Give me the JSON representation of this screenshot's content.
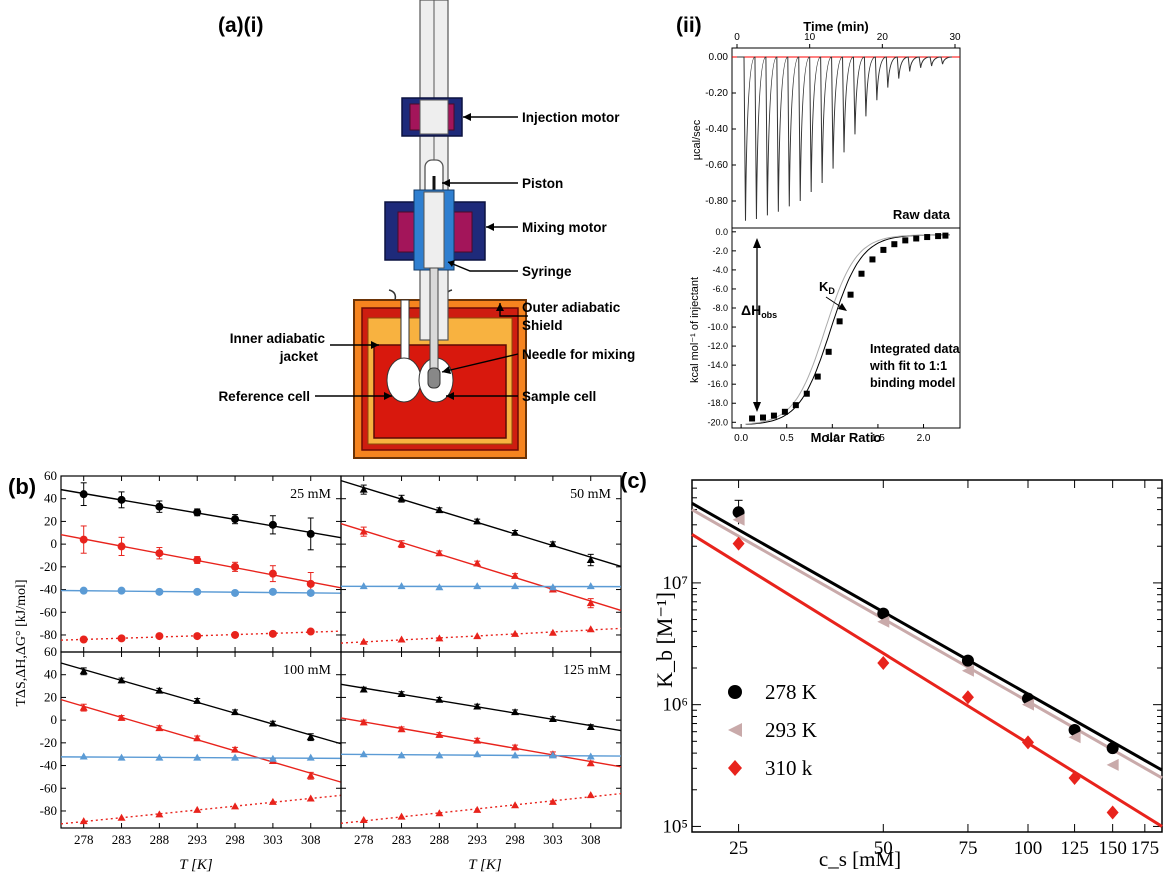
{
  "panel_labels": {
    "a": "(a)(i)",
    "aii": "(ii)",
    "b": "(b)",
    "c": "(c)"
  },
  "colors": {
    "black": "#000000",
    "red": "#e8231c",
    "blue": "#5b9bd5",
    "grey": "#c9aaaa",
    "ref": "#ff0000"
  },
  "diagram": {
    "labels": {
      "injection_motor": "Injection motor",
      "piston": "Piston",
      "mixing_motor": "Mixing motor",
      "syringe": "Syringe",
      "outer_shield_1": "Outer adiabatic",
      "outer_shield_2": "Shield",
      "inner_jacket_1": "Inner adiabatic",
      "inner_jacket_2": "jacket",
      "needle": "Needle for mixing",
      "reference_cell": "Reference cell",
      "sample_cell": "Sample cell"
    }
  },
  "itc": {
    "top_xlabel": "Time (min)",
    "top_ticks": [
      "0",
      "10",
      "20",
      "30"
    ],
    "raw_ylabel": "µcal/sec",
    "raw_yticks": [
      "0.00",
      "-0.20",
      "-0.40",
      "-0.60",
      "-0.80"
    ],
    "raw_label": "Raw data",
    "int_ylabel": "kcal mol⁻¹ of injectant",
    "int_yticks": [
      "0.0",
      "-2.0",
      "-4.0",
      "-6.0",
      "-8.0",
      "-10.0",
      "-12.0",
      "-14.0",
      "-16.0",
      "-18.0",
      "-20.0"
    ],
    "int_xticks": [
      "0.0",
      "0.5",
      "1.0",
      "1.5",
      "2.0"
    ],
    "int_xlabel": "Molar Ratio",
    "dh_label": "ΔH",
    "dh_sub": "obs",
    "kd_label": "K",
    "kd_sub": "D",
    "int_text_1": "Integrated data",
    "int_text_2": "with fit to 1:1",
    "int_text_3": "binding model"
  },
  "chart_data": [
    {
      "type": "scatter",
      "panel": "(ii) raw data",
      "x_label": "Time (min)",
      "x_range": [
        0,
        30
      ],
      "y_label": "µcal/sec",
      "y_range": [
        -0.95,
        0.05
      ],
      "injection_count": 19,
      "peak_depths": [
        -0.91,
        -0.9,
        -0.88,
        -0.86,
        -0.83,
        -0.8,
        -0.75,
        -0.7,
        -0.62,
        -0.53,
        -0.43,
        -0.33,
        -0.24,
        -0.17,
        -0.12,
        -0.08,
        -0.06,
        -0.05,
        -0.04
      ]
    },
    {
      "type": "scatter",
      "panel": "(ii) integrated data",
      "x_label": "Molar Ratio",
      "x_range": [
        -0.1,
        2.4
      ],
      "y_label": "kcal mol⁻¹ of injectant",
      "y_range": [
        -20.6,
        0.4
      ],
      "x": [
        0.12,
        0.24,
        0.36,
        0.48,
        0.6,
        0.72,
        0.84,
        0.96,
        1.08,
        1.2,
        1.32,
        1.44,
        1.56,
        1.68,
        1.8,
        1.92,
        2.04,
        2.16,
        2.24
      ],
      "y": [
        -19.6,
        -19.5,
        -19.3,
        -18.9,
        -18.2,
        -17.0,
        -15.2,
        -12.6,
        -9.4,
        -6.6,
        -4.4,
        -2.9,
        -1.9,
        -1.3,
        -0.9,
        -0.7,
        -0.55,
        -0.45,
        -0.4
      ]
    },
    {
      "type": "scatter",
      "panel": "(b)",
      "xlabel": "T [K]",
      "ylabel": "TΔS,ΔH,ΔG° [kJ/mol]",
      "x_ticks": [
        278,
        283,
        288,
        293,
        298,
        303,
        308
      ],
      "x_range": [
        275,
        312
      ],
      "y_range": [
        -95,
        60
      ],
      "y_ticks": [
        60,
        40,
        20,
        0,
        -20,
        -40,
        -60,
        -80
      ],
      "subplots": [
        {
          "label": "25 mM",
          "x": [
            278,
            283,
            288,
            293,
            298,
            303,
            308
          ],
          "black": [
            44,
            39,
            33,
            28,
            22,
            17,
            9
          ],
          "red": [
            4,
            -2,
            -8,
            -14,
            -20,
            -26,
            -35
          ],
          "blue": [
            -41,
            -41,
            -42,
            -42,
            -43,
            -42,
            -43
          ],
          "redDot": [
            -84,
            -83,
            -81,
            -81,
            -80,
            -79,
            -77
          ],
          "black_err": [
            10,
            7,
            5,
            3,
            4,
            8,
            14
          ],
          "red_err": [
            12,
            8,
            5,
            3,
            4,
            7,
            10
          ]
        },
        {
          "label": "50 mM",
          "x": [
            278,
            283,
            288,
            293,
            298,
            303,
            308
          ],
          "black": [
            48,
            40,
            30,
            20,
            10,
            0,
            -14
          ],
          "red": [
            11,
            0,
            -8,
            -17,
            -28,
            -40,
            -52
          ],
          "blue": [
            -37,
            -37,
            -38,
            -37,
            -37,
            -38,
            -37
          ],
          "redDot": [
            -86,
            -84,
            -83,
            -81,
            -79,
            -78,
            -75
          ],
          "black_err": [
            4,
            3,
            2,
            2,
            2,
            2,
            5
          ],
          "red_err": [
            4,
            3,
            2,
            2,
            2,
            2,
            4
          ]
        },
        {
          "label": "100 mM",
          "x": [
            278,
            283,
            288,
            293,
            298,
            303,
            308
          ],
          "black": [
            43,
            35,
            26,
            17,
            7,
            -3,
            -15
          ],
          "red": [
            11,
            2,
            -7,
            -16,
            -26,
            -36,
            -49
          ],
          "blue": [
            -32,
            -33,
            -33,
            -33,
            -33,
            -34,
            -33
          ],
          "redDot": [
            -89,
            -86,
            -83,
            -79,
            -76,
            -72,
            -69
          ],
          "black_err": [
            3,
            2,
            2,
            2,
            2,
            2,
            3
          ],
          "red_err": [
            3,
            2,
            2,
            2,
            2,
            2,
            3
          ]
        },
        {
          "label": "125 mM",
          "x": [
            278,
            283,
            288,
            293,
            298,
            303,
            308
          ],
          "black": [
            27,
            23,
            18,
            12,
            7,
            1,
            -6
          ],
          "red": [
            -2,
            -8,
            -13,
            -18,
            -24,
            -30,
            -38
          ],
          "blue": [
            -30,
            -31,
            -31,
            -30,
            -31,
            -31,
            -32
          ],
          "redDot": [
            -88,
            -85,
            -82,
            -79,
            -75,
            -72,
            -66
          ],
          "black_err": [
            2,
            2,
            2,
            2,
            2,
            2,
            2
          ],
          "red_err": [
            2,
            2,
            2,
            2,
            2,
            2,
            2
          ]
        }
      ]
    },
    {
      "type": "scatter",
      "panel": "(c)",
      "xlabel": "c_s [mM]",
      "ylabel": "K_b [M⁻¹]",
      "x_scale": "log",
      "y_scale": "log",
      "x_ticks": [
        25,
        50,
        75,
        100,
        125,
        150,
        175
      ],
      "x_tick_labels": [
        "25",
        "50",
        "75",
        "100",
        "125",
        "150",
        "175"
      ],
      "x_range": [
        20,
        190
      ],
      "y_ticks": [
        "10⁵",
        "10⁶",
        "10⁷"
      ],
      "y_range": [
        90000,
        70000000
      ],
      "legend": [
        "278 K",
        "293 K",
        "310 k"
      ],
      "series": [
        {
          "name": "278 K",
          "x": [
            25,
            50,
            75,
            100,
            125,
            150
          ],
          "y": [
            38000000,
            5600000,
            2300000,
            1120000,
            620000,
            440000
          ],
          "fit": [
            45000000,
            290000
          ]
        },
        {
          "name": "293 K",
          "x": [
            25,
            50,
            75,
            100,
            125,
            150
          ],
          "y": [
            33000000,
            4800000,
            1900000,
            1000000,
            540000,
            320000
          ],
          "fit": [
            40000000,
            250000
          ]
        },
        {
          "name": "310 k",
          "x": [
            25,
            50,
            75,
            100,
            125,
            150
          ],
          "y": [
            21000000,
            2200000,
            1150000,
            490000,
            250000,
            130000
          ],
          "fit": [
            25000000,
            100000
          ]
        }
      ]
    }
  ]
}
